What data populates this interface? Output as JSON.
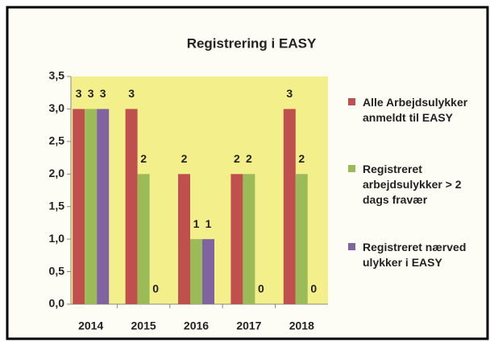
{
  "chart_data": {
    "type": "bar",
    "title": "Registrering i EASY",
    "categories": [
      "2014",
      "2015",
      "2016",
      "2017",
      "2018"
    ],
    "series": [
      {
        "name": "Alle Arbejdsulykker anmeldt til EASY",
        "color": "#c0504d",
        "values": [
          3,
          3,
          2,
          2,
          3
        ]
      },
      {
        "name": "Registreret arbejdsulykker > 2 dags fravær",
        "color": "#9bbb59",
        "values": [
          3,
          2,
          1,
          2,
          2
        ]
      },
      {
        "name": "Registreret nærved ulykker i EASY",
        "color": "#8064a2",
        "values": [
          3,
          0,
          1,
          0,
          0
        ]
      }
    ],
    "ylim": [
      0,
      3.5
    ],
    "yticks": [
      {
        "value": 0,
        "label": "0,0"
      },
      {
        "value": 0.5,
        "label": "0,5"
      },
      {
        "value": 1,
        "label": "1,0"
      },
      {
        "value": 1.5,
        "label": "1,5"
      },
      {
        "value": 2,
        "label": "2,0"
      },
      {
        "value": 2.5,
        "label": "2,5"
      },
      {
        "value": 3,
        "label": "3,0"
      },
      {
        "value": 3.5,
        "label": "3,5"
      }
    ],
    "grid": false,
    "legend": "right",
    "plot_background": "#f3f08c"
  }
}
